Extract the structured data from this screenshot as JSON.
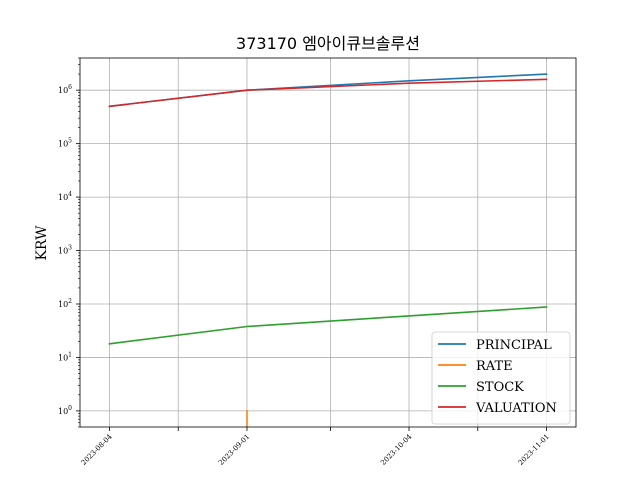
{
  "chart_data": {
    "type": "line",
    "title": "373170 엠아이큐브솔루션",
    "xlabel": "",
    "ylabel": "KRW",
    "yscale": "log",
    "ylim": [
      0.5,
      4000000
    ],
    "xlim": [
      "2023-07-29",
      "2023-11-07"
    ],
    "grid": true,
    "legend_position": "lower-right",
    "x_ticks": [
      "2023-08-04",
      "2023-08-18",
      "2023-09-01",
      "2023-09-18",
      "2023-10-04",
      "2023-10-18",
      "2023-11-01"
    ],
    "x_tick_labels": [
      "2023-08-04",
      "",
      "2023-09-01",
      "",
      "2023-10-04",
      "",
      "2023-11-01"
    ],
    "y_ticks": [
      {
        "value": 1,
        "base": "10",
        "exp": "0"
      },
      {
        "value": 10,
        "base": "10",
        "exp": "1"
      },
      {
        "value": 100,
        "base": "10",
        "exp": "2"
      },
      {
        "value": 1000,
        "base": "10",
        "exp": "3"
      },
      {
        "value": 10000,
        "base": "10",
        "exp": "4"
      },
      {
        "value": 100000,
        "base": "10",
        "exp": "5"
      },
      {
        "value": 1000000,
        "base": "10",
        "exp": "6"
      }
    ],
    "series": [
      {
        "name": "PRINCIPAL",
        "color": "#1f77b4",
        "points": [
          [
            "2023-08-04",
            500000
          ],
          [
            "2023-09-01",
            1000000
          ],
          [
            "2023-10-04",
            1500000
          ],
          [
            "2023-11-01",
            2000000
          ]
        ]
      },
      {
        "name": "RATE",
        "color": "#ff7f0e",
        "points": [
          [
            "2023-09-01",
            1
          ],
          [
            "2023-09-01",
            0.4
          ]
        ]
      },
      {
        "name": "STOCK",
        "color": "#2ca02c",
        "points": [
          [
            "2023-08-04",
            18
          ],
          [
            "2023-09-01",
            38
          ],
          [
            "2023-10-04",
            60
          ],
          [
            "2023-11-01",
            88
          ]
        ]
      },
      {
        "name": "VALUATION",
        "color": "#d62728",
        "points": [
          [
            "2023-08-04",
            500000
          ],
          [
            "2023-09-01",
            1000000
          ],
          [
            "2023-10-04",
            1350000
          ],
          [
            "2023-11-01",
            1600000
          ]
        ]
      }
    ]
  }
}
